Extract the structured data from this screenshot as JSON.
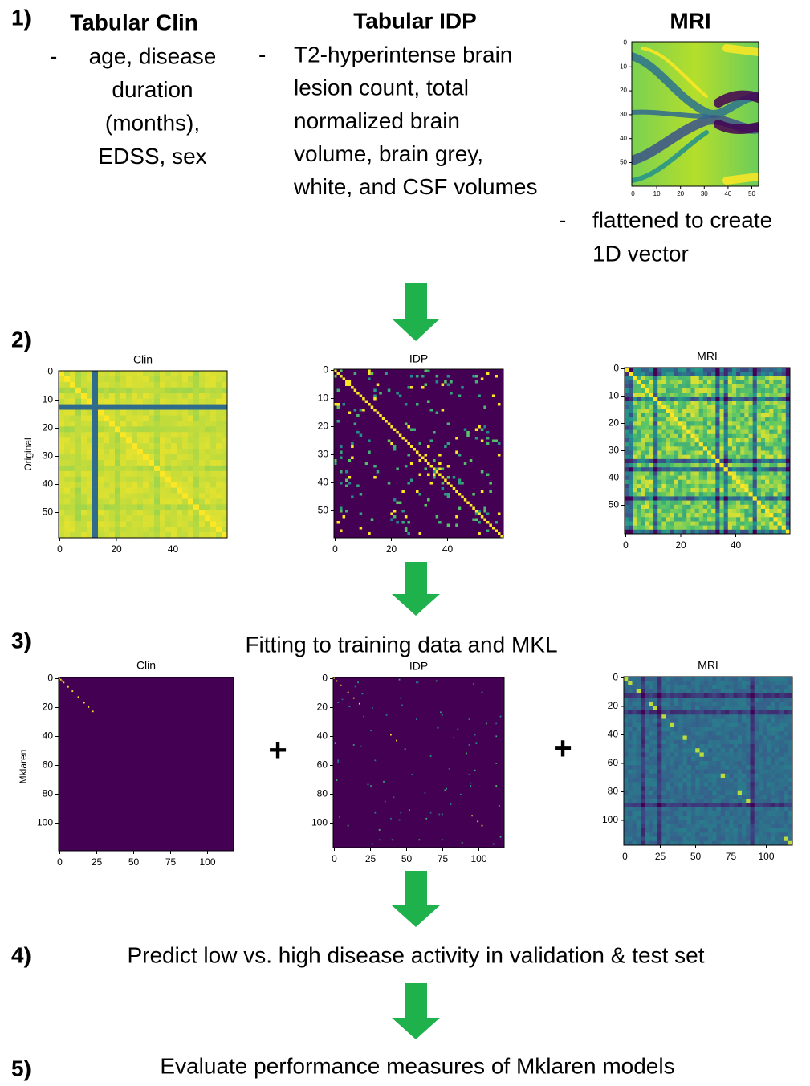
{
  "step1": {
    "number": "1)",
    "columns": [
      {
        "title": "Tabular Clin",
        "bullet": "-",
        "lines": [
          "age, disease",
          "duration",
          "(months),",
          "EDSS, sex"
        ]
      },
      {
        "title": "Tabular IDP",
        "bullet": "-",
        "lines": [
          "T2-hyperintense brain",
          "lesion count, total",
          "normalized brain",
          "volume, brain grey,",
          "white, and CSF volumes"
        ]
      },
      {
        "title": "MRI",
        "bullet": "-",
        "lines": [
          "flattened to create",
          "1D vector"
        ],
        "image": {
          "xticks": [
            0,
            10,
            20,
            30,
            40,
            50
          ],
          "yticks": [
            0,
            10,
            20,
            30,
            40,
            50
          ]
        }
      }
    ]
  },
  "step2": {
    "number": "2)",
    "ylabel": "Original",
    "panels": [
      {
        "title": "Clin",
        "xticks": [
          0,
          20,
          40
        ],
        "yticks": [
          0,
          10,
          20,
          30,
          40,
          50
        ]
      },
      {
        "title": "IDP",
        "xticks": [
          0,
          20,
          40
        ],
        "yticks": [
          0,
          10,
          20,
          30,
          40,
          50
        ]
      },
      {
        "title": "MRI",
        "xticks": [
          0,
          20,
          40
        ],
        "yticks": [
          0,
          10,
          20,
          30,
          40,
          50
        ]
      }
    ]
  },
  "step3": {
    "number": "3)",
    "caption": "Fitting to training data and MKL",
    "ylabel": "Mklaren",
    "operators": [
      "+",
      "+"
    ],
    "panels": [
      {
        "title": "Clin",
        "xticks": [
          0,
          25,
          50,
          75,
          100
        ],
        "yticks": [
          0,
          20,
          40,
          60,
          80,
          100
        ]
      },
      {
        "title": "IDP",
        "xticks": [
          0,
          25,
          50,
          75,
          100
        ],
        "yticks": [
          0,
          20,
          40,
          60,
          80,
          100
        ]
      },
      {
        "title": "MRI",
        "xticks": [
          0,
          25,
          50,
          75,
          100
        ],
        "yticks": [
          0,
          20,
          40,
          60,
          80,
          100
        ]
      }
    ]
  },
  "step4": {
    "number": "4)",
    "text": "Predict low vs. high disease activity in validation & test set"
  },
  "step5": {
    "number": "5)",
    "text": "Evaluate performance measures of Mklaren models"
  }
}
